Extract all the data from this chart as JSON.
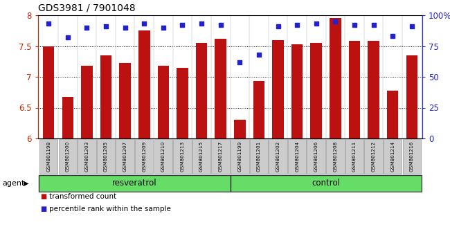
{
  "title": "GDS3981 / 7901048",
  "samples": [
    "GSM801198",
    "GSM801200",
    "GSM801203",
    "GSM801205",
    "GSM801207",
    "GSM801209",
    "GSM801210",
    "GSM801213",
    "GSM801215",
    "GSM801217",
    "GSM801199",
    "GSM801201",
    "GSM801202",
    "GSM801204",
    "GSM801206",
    "GSM801208",
    "GSM801211",
    "GSM801212",
    "GSM801214",
    "GSM801216"
  ],
  "bar_values": [
    7.5,
    6.67,
    7.18,
    7.35,
    7.22,
    7.75,
    7.18,
    7.15,
    7.55,
    7.62,
    6.3,
    6.93,
    7.6,
    7.53,
    7.55,
    7.95,
    7.58,
    7.58,
    6.78,
    7.35
  ],
  "percentile_values": [
    93,
    82,
    90,
    91,
    90,
    93,
    90,
    92,
    93,
    92,
    62,
    68,
    91,
    92,
    93,
    95,
    92,
    92,
    83,
    91
  ],
  "bar_color": "#bb1111",
  "dot_color": "#2222cc",
  "ylim_left": [
    6.0,
    8.0
  ],
  "ylim_right": [
    0,
    100
  ],
  "yticks_left": [
    6.0,
    6.5,
    7.0,
    7.5,
    8.0
  ],
  "yticks_right": [
    0,
    25,
    50,
    75,
    100
  ],
  "ytick_labels_right": [
    "0",
    "25",
    "50",
    "75",
    "100%"
  ],
  "grid_values": [
    6.5,
    7.0,
    7.5
  ],
  "groups": [
    {
      "label": "resveratrol",
      "start": 0,
      "end": 10
    },
    {
      "label": "control",
      "start": 10,
      "end": 20
    }
  ],
  "agent_label": "agent",
  "legend_items": [
    {
      "color": "#bb1111",
      "label": "transformed count"
    },
    {
      "color": "#2222cc",
      "label": "percentile rank within the sample"
    }
  ],
  "left_axis_color": "#cc2200",
  "right_axis_color": "#2222cc",
  "title_fontsize": 10,
  "bar_bottom": 6.0,
  "group_color": "#66dd66",
  "tick_label_bg": "#cccccc",
  "bar_width": 0.6,
  "dot_size": 15
}
